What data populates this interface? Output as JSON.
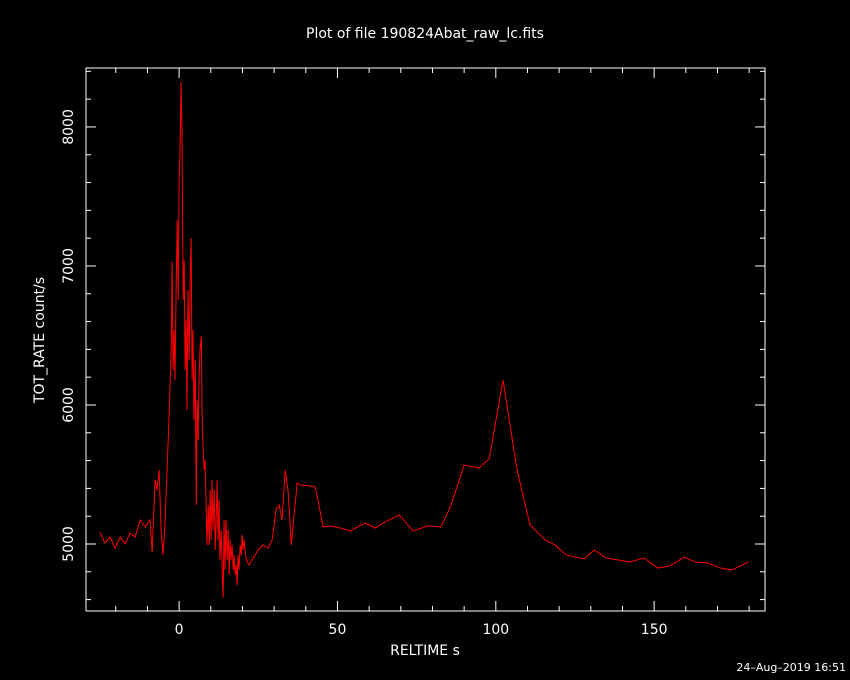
{
  "chart_data": {
    "type": "line",
    "title": "Plot of file 190824Abat_raw_lc.fits",
    "xlabel": "RELTIME  s",
    "ylabel": "TOT_RATE  count/s",
    "timestamp": "24–Aug–2019 16:51",
    "xlim": [
      -29.4,
      185.0
    ],
    "ylim": [
      4518,
      8424
    ],
    "xticks": [
      0,
      50,
      100,
      150
    ],
    "yticks": [
      5000,
      6000,
      7000,
      8000
    ],
    "xminorticks": [
      -20,
      -10,
      10,
      20,
      30,
      40,
      60,
      70,
      80,
      90,
      110,
      120,
      130,
      140,
      160,
      170,
      180
    ],
    "yminorticks": [
      4600,
      4800,
      5200,
      5400,
      5600,
      5800,
      6200,
      6400,
      6600,
      6800,
      7200,
      7400,
      7600,
      7800,
      8200,
      8400
    ],
    "x": [
      -25,
      -23.4,
      -21.8,
      -20.2,
      -18.6,
      -17,
      -15.5,
      -13.9,
      -12.3,
      -10.7,
      -9.2,
      -8.5,
      -7.6,
      -7,
      -6.3,
      -5.7,
      -5.1,
      -4.4,
      -3.8,
      -3.2,
      -2.5,
      -2.2,
      -1.9,
      -1.6,
      -1.3,
      -0.9,
      -0.6,
      -0.3,
      0,
      0.3,
      0.6,
      0.9,
      1.3,
      1.6,
      1.9,
      2.2,
      2.5,
      2.8,
      3.2,
      3.5,
      3.8,
      4.1,
      4.4,
      4.7,
      5.1,
      5.4,
      5.7,
      6.0,
      6.3,
      6.6,
      7.0,
      7.3,
      7.6,
      7.9,
      8.2,
      8.5,
      8.8,
      9.2,
      9.5,
      9.8,
      10.1,
      10.4,
      10.7,
      11.1,
      11.4,
      11.7,
      12.0,
      12.3,
      12.6,
      12.9,
      13.3,
      13.6,
      13.9,
      14.2,
      14.5,
      14.8,
      15.2,
      15.5,
      15.8,
      16.1,
      16.4,
      16.7,
      17.1,
      17.4,
      17.7,
      18.0,
      18.3,
      18.6,
      18.9,
      19.3,
      19.6,
      19.9,
      20.2,
      20.5,
      21.2,
      22.1,
      23.4,
      25,
      26.5,
      28.1,
      29.4,
      30.6,
      31.6,
      32.5,
      33.5,
      34.4,
      35.4,
      36.3,
      37.3,
      38.2,
      41.4,
      43,
      45.5,
      47.7,
      50.9,
      54,
      58.7,
      61.9,
      65.0,
      69.5,
      73.9,
      78.6,
      82.7,
      85.9,
      90.0,
      94.7,
      97.9,
      102.3,
      106.7,
      110.8,
      115.6,
      118.7,
      122.2,
      125.0,
      127.9,
      131.0,
      134.8,
      138.6,
      142.4,
      146.8,
      151.2,
      155.0,
      159.5,
      162.9,
      167.0,
      170.8,
      174.6,
      179.7
    ],
    "series": [
      {
        "color": "#ff0000",
        "values": [
          5086,
          5007,
          5050,
          4971,
          5050,
          5000,
          5079,
          5050,
          5173,
          5122,
          5173,
          4942,
          5460,
          5388,
          5532,
          5100,
          4921,
          5173,
          5532,
          5892,
          6396,
          7029,
          6252,
          6540,
          6180,
          6899,
          7331,
          6755,
          7619,
          7835,
          8324,
          7978,
          6755,
          7043,
          6252,
          6612,
          5964,
          6827,
          6324,
          6899,
          7201,
          6180,
          6540,
          5892,
          6324,
          5281,
          6036,
          5748,
          6180,
          6396,
          6496,
          5892,
          5676,
          5532,
          5604,
          5317,
          4993,
          5281,
          4993,
          5388,
          5029,
          5460,
          5101,
          5388,
          4957,
          5173,
          5460,
          5029,
          5317,
          4885,
          5101,
          4813,
          4612,
          5173,
          4813,
          5173,
          4885,
          5101,
          4777,
          5029,
          4885,
          4993,
          4813,
          4921,
          4777,
          4849,
          4705,
          4921,
          4813,
          4993,
          4921,
          5065,
          4957,
          5029,
          4885,
          4849,
          4900,
          4957,
          4993,
          4971,
          5029,
          5245,
          5281,
          5173,
          5532,
          5388,
          4993,
          5209,
          5439,
          5424,
          5417,
          5410,
          5122,
          5130,
          5115,
          5094,
          5151,
          5115,
          5158,
          5209,
          5094,
          5130,
          5122,
          5281,
          5568,
          5547,
          5612,
          6180,
          5532,
          5137,
          5029,
          4993,
          4921,
          4906,
          4892,
          4957,
          4900,
          4885,
          4871,
          4900,
          4827,
          4842,
          4906,
          4871,
          4863,
          4827,
          4813,
          4871
        ]
      }
    ]
  }
}
